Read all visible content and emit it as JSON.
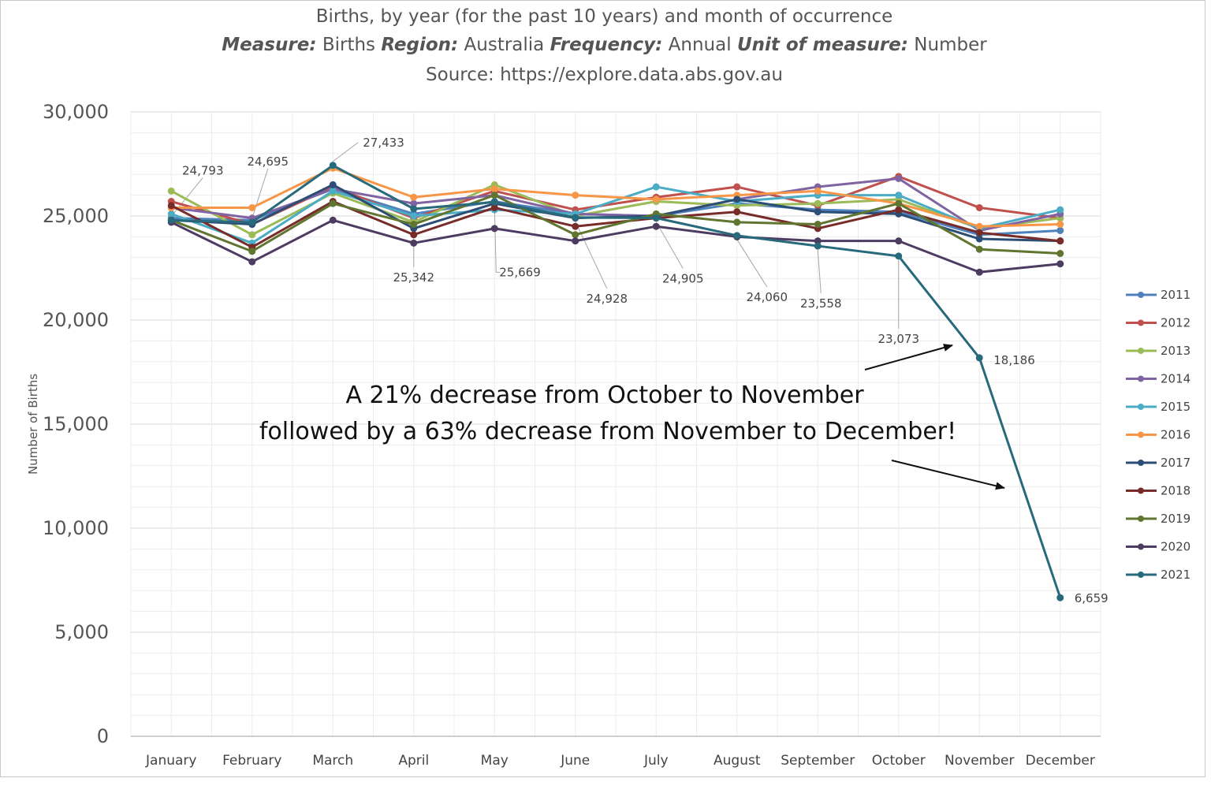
{
  "title": "Births, by year (for the past 10 years) and month of occurrence",
  "subtitle": {
    "measure_label": "Measure:",
    "measure": "Births",
    "region_label": "Region:",
    "region": "Australia",
    "frequency_label": "Frequency:",
    "frequency": "Annual",
    "unit_label": "Unit of measure:",
    "unit": "Number"
  },
  "source": "Source: https://explore.data.abs.gov.au",
  "annotation": {
    "line1": "A 21% decrease from October to November",
    "line2": "followed by a 63% decrease from November to December!"
  },
  "chart_data": {
    "type": "line",
    "ylabel": "Number of Births",
    "xlabel": "",
    "ylim": [
      0,
      30000
    ],
    "yticks": [
      "0",
      "5,000",
      "10,000",
      "15,000",
      "20,000",
      "25,000",
      "30,000"
    ],
    "ytick_values": [
      0,
      5000,
      10000,
      15000,
      20000,
      25000,
      30000
    ],
    "grid": true,
    "legend_position": "right",
    "categories": [
      "January",
      "February",
      "March",
      "April",
      "May",
      "June",
      "July",
      "August",
      "September",
      "October",
      "November",
      "December"
    ],
    "series": [
      {
        "name": "2011",
        "color": "#4E81BD",
        "values": [
          24900,
          24800,
          26300,
          25100,
          25700,
          25100,
          25000,
          25600,
          25300,
          25200,
          24100,
          24300
        ]
      },
      {
        "name": "2012",
        "color": "#C0504D",
        "values": [
          25700,
          24600,
          26400,
          24900,
          26200,
          25300,
          25900,
          26400,
          25500,
          26900,
          25400,
          24900
        ]
      },
      {
        "name": "2013",
        "color": "#9BBB59",
        "values": [
          26200,
          24100,
          26100,
          24700,
          26500,
          25000,
          25700,
          25500,
          25600,
          25800,
          24400,
          24900
        ]
      },
      {
        "name": "2014",
        "color": "#8064A2",
        "values": [
          25400,
          24900,
          26300,
          25600,
          26000,
          25100,
          25000,
          25800,
          26400,
          26800,
          24300,
          25100
        ]
      },
      {
        "name": "2015",
        "color": "#4BACC6",
        "values": [
          25100,
          23700,
          26200,
          25000,
          25300,
          25100,
          26400,
          25700,
          26000,
          26000,
          24400,
          25300
        ]
      },
      {
        "name": "2016",
        "color": "#F79646",
        "values": [
          25400,
          25400,
          27300,
          25900,
          26300,
          26000,
          25800,
          26000,
          26200,
          25600,
          24500,
          24600
        ]
      },
      {
        "name": "2017",
        "color": "#2C4D75",
        "values": [
          24800,
          24600,
          26500,
          24400,
          25600,
          24900,
          25000,
          25800,
          25200,
          25100,
          23900,
          23800
        ]
      },
      {
        "name": "2018",
        "color": "#772C2A",
        "values": [
          25500,
          23500,
          25700,
          24100,
          25400,
          24500,
          24900,
          25200,
          24400,
          25300,
          24200,
          23800
        ]
      },
      {
        "name": "2019",
        "color": "#5F7530",
        "values": [
          24800,
          23300,
          25600,
          24600,
          26000,
          24100,
          25100,
          24700,
          24600,
          25600,
          23400,
          23200
        ]
      },
      {
        "name": "2020",
        "color": "#4D3B62",
        "values": [
          24700,
          22800,
          24800,
          23700,
          24400,
          23800,
          24500,
          24000,
          23800,
          23800,
          22300,
          22700
        ]
      },
      {
        "name": "2021",
        "color": "#276A7C",
        "values": [
          24793,
          24695,
          27433,
          25342,
          25669,
          24928,
          24905,
          24060,
          23558,
          23073,
          18186,
          6659
        ]
      }
    ],
    "data_labels": {
      "series": "2021",
      "labels": [
        "24,793",
        "24,695",
        "27,433",
        "25,342",
        "25,669",
        "24,928",
        "24,905",
        "24,060",
        "23,558",
        "23,073",
        "18,186",
        "6,659"
      ]
    }
  }
}
